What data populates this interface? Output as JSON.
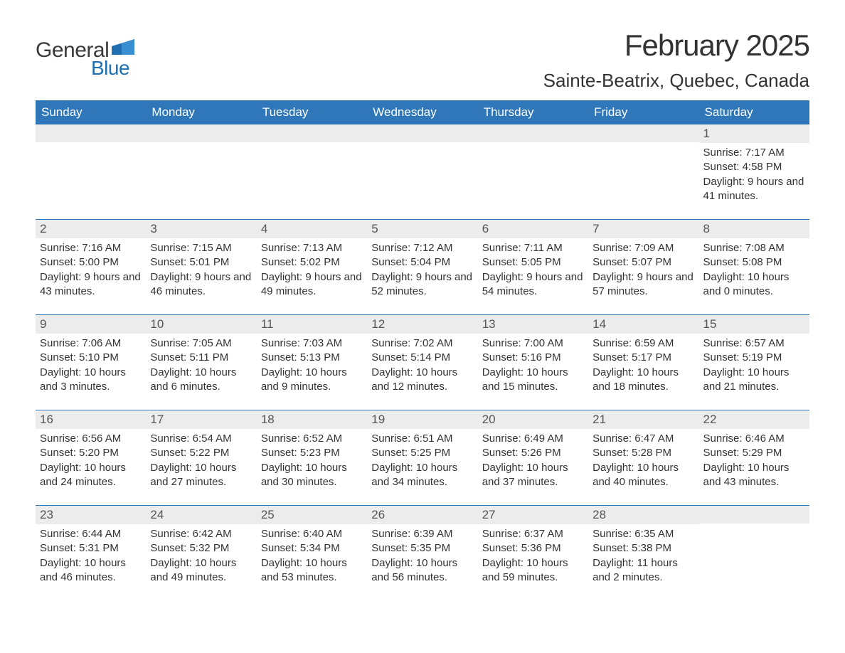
{
  "logo": {
    "text1": "General",
    "text2": "Blue",
    "flag_color": "#1f6fb2"
  },
  "title": "February 2025",
  "location": "Sainte-Beatrix, Quebec, Canada",
  "colors": {
    "header_bg": "#2f77b8",
    "header_text": "#ffffff",
    "daynum_bg": "#ececec",
    "week_border": "#2f77b8",
    "body_text": "#333333"
  },
  "font": {
    "title_size_pt": 32,
    "location_size_pt": 20,
    "weekday_size_pt": 13,
    "daynum_size_pt": 13,
    "body_size_pt": 11
  },
  "weekdays": [
    "Sunday",
    "Monday",
    "Tuesday",
    "Wednesday",
    "Thursday",
    "Friday",
    "Saturday"
  ],
  "weeks": [
    [
      {
        "n": "",
        "sr": "",
        "ss": "",
        "dl": ""
      },
      {
        "n": "",
        "sr": "",
        "ss": "",
        "dl": ""
      },
      {
        "n": "",
        "sr": "",
        "ss": "",
        "dl": ""
      },
      {
        "n": "",
        "sr": "",
        "ss": "",
        "dl": ""
      },
      {
        "n": "",
        "sr": "",
        "ss": "",
        "dl": ""
      },
      {
        "n": "",
        "sr": "",
        "ss": "",
        "dl": ""
      },
      {
        "n": "1",
        "sr": "Sunrise: 7:17 AM",
        "ss": "Sunset: 4:58 PM",
        "dl": "Daylight: 9 hours and 41 minutes."
      }
    ],
    [
      {
        "n": "2",
        "sr": "Sunrise: 7:16 AM",
        "ss": "Sunset: 5:00 PM",
        "dl": "Daylight: 9 hours and 43 minutes."
      },
      {
        "n": "3",
        "sr": "Sunrise: 7:15 AM",
        "ss": "Sunset: 5:01 PM",
        "dl": "Daylight: 9 hours and 46 minutes."
      },
      {
        "n": "4",
        "sr": "Sunrise: 7:13 AM",
        "ss": "Sunset: 5:02 PM",
        "dl": "Daylight: 9 hours and 49 minutes."
      },
      {
        "n": "5",
        "sr": "Sunrise: 7:12 AM",
        "ss": "Sunset: 5:04 PM",
        "dl": "Daylight: 9 hours and 52 minutes."
      },
      {
        "n": "6",
        "sr": "Sunrise: 7:11 AM",
        "ss": "Sunset: 5:05 PM",
        "dl": "Daylight: 9 hours and 54 minutes."
      },
      {
        "n": "7",
        "sr": "Sunrise: 7:09 AM",
        "ss": "Sunset: 5:07 PM",
        "dl": "Daylight: 9 hours and 57 minutes."
      },
      {
        "n": "8",
        "sr": "Sunrise: 7:08 AM",
        "ss": "Sunset: 5:08 PM",
        "dl": "Daylight: 10 hours and 0 minutes."
      }
    ],
    [
      {
        "n": "9",
        "sr": "Sunrise: 7:06 AM",
        "ss": "Sunset: 5:10 PM",
        "dl": "Daylight: 10 hours and 3 minutes."
      },
      {
        "n": "10",
        "sr": "Sunrise: 7:05 AM",
        "ss": "Sunset: 5:11 PM",
        "dl": "Daylight: 10 hours and 6 minutes."
      },
      {
        "n": "11",
        "sr": "Sunrise: 7:03 AM",
        "ss": "Sunset: 5:13 PM",
        "dl": "Daylight: 10 hours and 9 minutes."
      },
      {
        "n": "12",
        "sr": "Sunrise: 7:02 AM",
        "ss": "Sunset: 5:14 PM",
        "dl": "Daylight: 10 hours and 12 minutes."
      },
      {
        "n": "13",
        "sr": "Sunrise: 7:00 AM",
        "ss": "Sunset: 5:16 PM",
        "dl": "Daylight: 10 hours and 15 minutes."
      },
      {
        "n": "14",
        "sr": "Sunrise: 6:59 AM",
        "ss": "Sunset: 5:17 PM",
        "dl": "Daylight: 10 hours and 18 minutes."
      },
      {
        "n": "15",
        "sr": "Sunrise: 6:57 AM",
        "ss": "Sunset: 5:19 PM",
        "dl": "Daylight: 10 hours and 21 minutes."
      }
    ],
    [
      {
        "n": "16",
        "sr": "Sunrise: 6:56 AM",
        "ss": "Sunset: 5:20 PM",
        "dl": "Daylight: 10 hours and 24 minutes."
      },
      {
        "n": "17",
        "sr": "Sunrise: 6:54 AM",
        "ss": "Sunset: 5:22 PM",
        "dl": "Daylight: 10 hours and 27 minutes."
      },
      {
        "n": "18",
        "sr": "Sunrise: 6:52 AM",
        "ss": "Sunset: 5:23 PM",
        "dl": "Daylight: 10 hours and 30 minutes."
      },
      {
        "n": "19",
        "sr": "Sunrise: 6:51 AM",
        "ss": "Sunset: 5:25 PM",
        "dl": "Daylight: 10 hours and 34 minutes."
      },
      {
        "n": "20",
        "sr": "Sunrise: 6:49 AM",
        "ss": "Sunset: 5:26 PM",
        "dl": "Daylight: 10 hours and 37 minutes."
      },
      {
        "n": "21",
        "sr": "Sunrise: 6:47 AM",
        "ss": "Sunset: 5:28 PM",
        "dl": "Daylight: 10 hours and 40 minutes."
      },
      {
        "n": "22",
        "sr": "Sunrise: 6:46 AM",
        "ss": "Sunset: 5:29 PM",
        "dl": "Daylight: 10 hours and 43 minutes."
      }
    ],
    [
      {
        "n": "23",
        "sr": "Sunrise: 6:44 AM",
        "ss": "Sunset: 5:31 PM",
        "dl": "Daylight: 10 hours and 46 minutes."
      },
      {
        "n": "24",
        "sr": "Sunrise: 6:42 AM",
        "ss": "Sunset: 5:32 PM",
        "dl": "Daylight: 10 hours and 49 minutes."
      },
      {
        "n": "25",
        "sr": "Sunrise: 6:40 AM",
        "ss": "Sunset: 5:34 PM",
        "dl": "Daylight: 10 hours and 53 minutes."
      },
      {
        "n": "26",
        "sr": "Sunrise: 6:39 AM",
        "ss": "Sunset: 5:35 PM",
        "dl": "Daylight: 10 hours and 56 minutes."
      },
      {
        "n": "27",
        "sr": "Sunrise: 6:37 AM",
        "ss": "Sunset: 5:36 PM",
        "dl": "Daylight: 10 hours and 59 minutes."
      },
      {
        "n": "28",
        "sr": "Sunrise: 6:35 AM",
        "ss": "Sunset: 5:38 PM",
        "dl": "Daylight: 11 hours and 2 minutes."
      },
      {
        "n": "",
        "sr": "",
        "ss": "",
        "dl": ""
      }
    ]
  ]
}
